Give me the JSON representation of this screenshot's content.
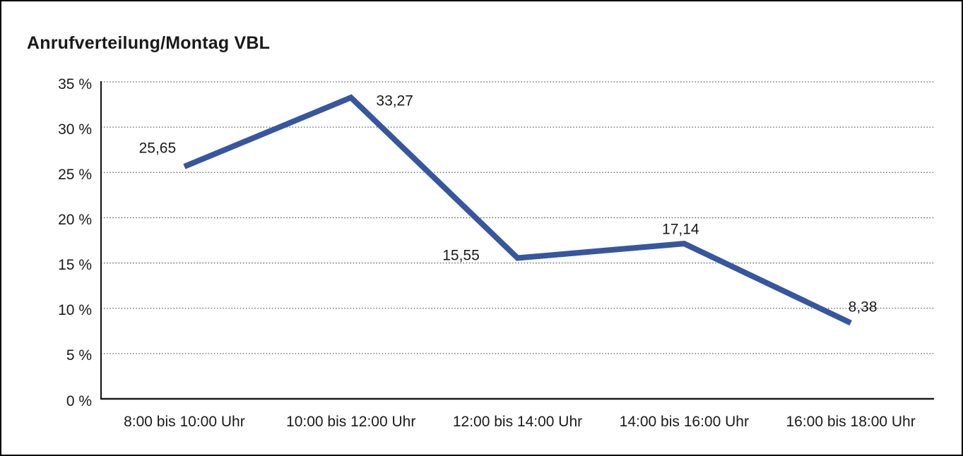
{
  "window": {
    "background": "#ffffff",
    "frame_border_color": "#000000"
  },
  "title": "Anrufverteilung/Montag VBL",
  "chart_data": {
    "type": "line",
    "title": "Anrufverteilung/Montag VBL",
    "categories": [
      "8:00 bis 10:00 Uhr",
      "10:00 bis 12:00 Uhr",
      "12:00 bis 14:00 Uhr",
      "14:00 bis 16:00 Uhr",
      "16:00 bis 18:00 Uhr"
    ],
    "values": [
      25.65,
      33.27,
      15.55,
      17.14,
      8.38
    ],
    "point_labels": [
      "25,65",
      "33,27",
      "15,55",
      "17,14",
      "8,38"
    ],
    "ylim": [
      0,
      35
    ],
    "ytick_step": 5,
    "ytick_labels": [
      "0 %",
      "5 %",
      "10 %",
      "15 %",
      "20 %",
      "25 %",
      "30 %",
      "35 %"
    ],
    "grid": "horizontal-dotted",
    "legend": "none",
    "line_color": "#3756a0",
    "axis_color": "#1a1a1a",
    "gridline_color": "#5a5a5a",
    "text_color": "#1a1a1a"
  }
}
